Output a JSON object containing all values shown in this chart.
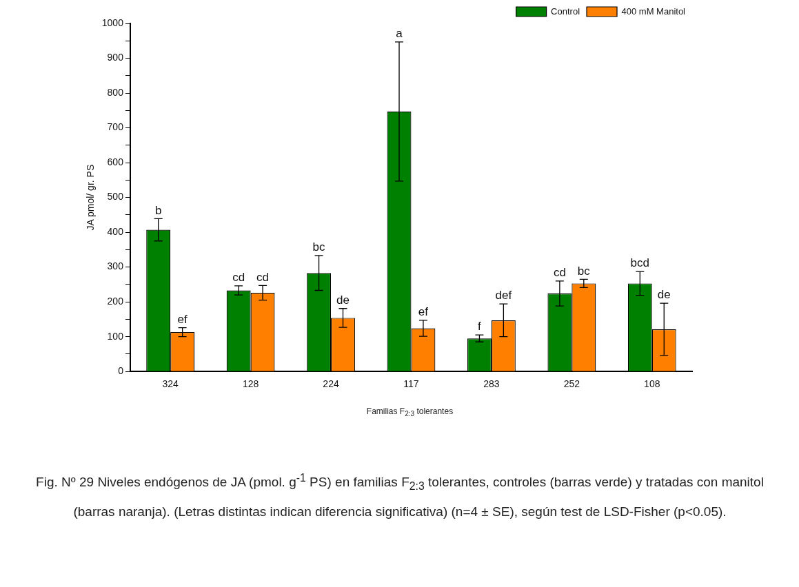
{
  "chart_data": {
    "type": "bar",
    "xlabel": "Familias F$_{2:3}$ tolerantes",
    "ylabel": "JA pmol/ gr. PS",
    "categories": [
      "324",
      "128",
      "224",
      "117",
      "283",
      "252",
      "108"
    ],
    "series": [
      {
        "name": "Control",
        "color": "#008000",
        "values": [
          407,
          233,
          283,
          747,
          95,
          224,
          253
        ],
        "errors": [
          32,
          13,
          50,
          200,
          10,
          36,
          34
        ]
      },
      {
        "name": "400 mM Manitol",
        "color": "#ff8000",
        "values": [
          113,
          226,
          154,
          124,
          147,
          253,
          121
        ],
        "errors": [
          13,
          21,
          27,
          23,
          47,
          12,
          75
        ]
      }
    ],
    "ylim": [
      0,
      1000
    ],
    "yticks": [
      0,
      {
        "value": 50,
        "label": null
      },
      100,
      {
        "value": 150,
        "label": null
      },
      200,
      {
        "value": 250,
        "label": null
      },
      300,
      {
        "value": 350,
        "label": null
      },
      400,
      {
        "value": 450,
        "label": null
      },
      500,
      {
        "value": 550,
        "label": null
      },
      600,
      {
        "value": 650,
        "label": null
      },
      700,
      {
        "value": 750,
        "label": null
      },
      800,
      {
        "value": 850,
        "label": null
      },
      900,
      {
        "value": 950,
        "label": null
      },
      1000
    ],
    "grid": false,
    "legend": "top right",
    "annotations": [
      {
        "text": "b",
        "x": "324",
        "y": 407
      },
      {
        "text": "ef",
        "x": "324",
        "y": 113
      },
      {
        "text": "cd",
        "x": "128",
        "y": 233
      },
      {
        "text": "cd",
        "x": "128",
        "y": 226
      },
      {
        "text": "bc",
        "x": "224",
        "y": 283
      },
      {
        "text": "de",
        "x": "224",
        "y": 154
      },
      {
        "text": "ef",
        "x": "117",
        "y": 124
      },
      "a",
      {
        "text": "f",
        "x": "283",
        "y": 95
      },
      {
        "text": "def",
        "x": "283",
        "y": 147
      },
      {
        "text": "cd",
        "x": "252",
        "y": 224
      },
      {
        "text": "bc",
        "x": "252",
        "y": 253
      },
      {
        "text": "bcd",
        "x": "108",
        "y": 253
      },
      {
        "text": "de",
        "x": "108",
        "y": 121
      },
      "Fig. Nº 29 Niveles endógenos de JA (pmol. g$^{-1}$ PS) en familias F$_{2:3}$ tolerantes, controles (barras verde) y tratadas con manitol (barras naranja). (Letras distintas indican diferencia significativa) (n=4 ± SE), según test de LSD-Fisher (p<0.05)."
    ]
  }
}
